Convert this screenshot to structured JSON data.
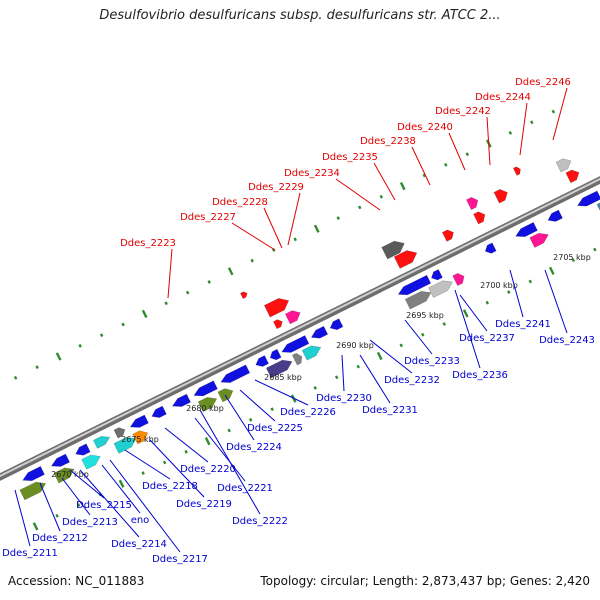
{
  "title": "Desulfovibrio desulfuricans subsp. desulfuricans str. ATCC 2...",
  "footer": {
    "accession": "Accession: NC_011883",
    "info": "Topology: circular; Length: 2,873,437 bp; Genes: 2,420"
  },
  "colors": {
    "forward_label": "#e00000",
    "reverse_label": "#0000cc",
    "backbone": "#8a8a8a",
    "tick": "#2e8b2e"
  },
  "scale_labels": [
    "2670 kbp",
    "2675 kbp",
    "2680 kbp",
    "2685 kbp",
    "2690 kbp",
    "2695 kbp",
    "2700 kbp",
    "2705 kbp"
  ],
  "forward_genes": [
    "Ddes_2223",
    "Ddes_2227",
    "Ddes_2228",
    "Ddes_2229",
    "Ddes_2234",
    "Ddes_2235",
    "Ddes_2238",
    "Ddes_2240",
    "Ddes_2242",
    "Ddes_2244",
    "Ddes_2246"
  ],
  "reverse_genes": [
    "Ddes_2211",
    "Ddes_2212",
    "Ddes_2213",
    "Ddes_2214",
    "Ddes_2215",
    "eno",
    "Ddes_2217",
    "Ddes_2218",
    "Ddes_2219",
    "Ddes_2220",
    "Ddes_2221",
    "Ddes_2222",
    "Ddes_2224",
    "Ddes_2225",
    "Ddes_2226",
    "Ddes_2230",
    "Ddes_2231",
    "Ddes_2232",
    "Ddes_2233",
    "Ddes_2236",
    "Ddes_2237",
    "Ddes_2241",
    "Ddes_2243"
  ]
}
